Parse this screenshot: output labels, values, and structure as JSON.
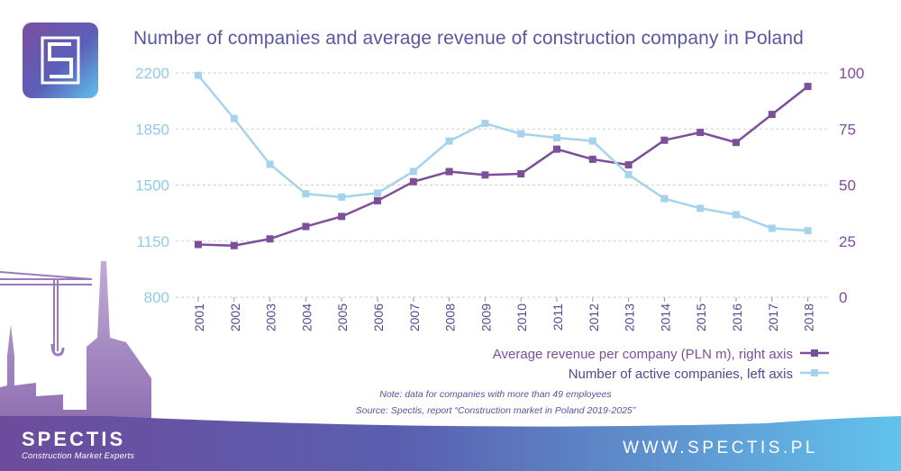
{
  "title": "Number of companies and average revenue of construction company in Poland",
  "logo_icon": "s-monogram-icon",
  "colors": {
    "revenue": "#7d4e9a",
    "companies": "#a6d3ec",
    "left_axis_text": "#8fcbe8",
    "right_axis_text": "#7d4e9a",
    "title": "#5b56a3",
    "grid": "#cfcfcf"
  },
  "chart_data": {
    "type": "line",
    "title": "Number of companies and average revenue of construction company in Poland",
    "categories": [
      "2001",
      "2002",
      "2003",
      "2004",
      "2005",
      "2006",
      "2007",
      "2008",
      "2009",
      "2010",
      "2011",
      "2012",
      "2013",
      "2014",
      "2015",
      "2016",
      "2017",
      "2018"
    ],
    "left_axis": {
      "ticks": [
        "800",
        "1150",
        "1500",
        "1850",
        "2200"
      ],
      "ylim": [
        800,
        2200
      ]
    },
    "right_axis": {
      "ticks": [
        "0",
        "25",
        "50",
        "75",
        "100"
      ],
      "ylim": [
        0,
        100
      ]
    },
    "series": [
      {
        "name": "Average revenue per company (PLN m), right axis",
        "axis": "right",
        "values": [
          23.5,
          23,
          26,
          31.5,
          36,
          43,
          51.5,
          56,
          54.5,
          55,
          66,
          61.5,
          59,
          70,
          73.5,
          69,
          81.5,
          94
        ]
      },
      {
        "name": "Number of active companies, left axis",
        "axis": "left",
        "values": [
          2185,
          1915,
          1630,
          1445,
          1425,
          1450,
          1585,
          1775,
          1885,
          1820,
          1795,
          1775,
          1565,
          1415,
          1355,
          1315,
          1230,
          1215
        ]
      }
    ],
    "legend_position": "bottom-right",
    "grid": true
  },
  "notes": {
    "line1": "Note: data for companies with more than 49 employees",
    "line2": "Source: Spectis, report “Construction market in Poland 2019-2025”"
  },
  "footer": {
    "brand": "SPECTIS",
    "tagline": "Construction Market Experts",
    "website": "WWW.SPECTIS.PL"
  }
}
